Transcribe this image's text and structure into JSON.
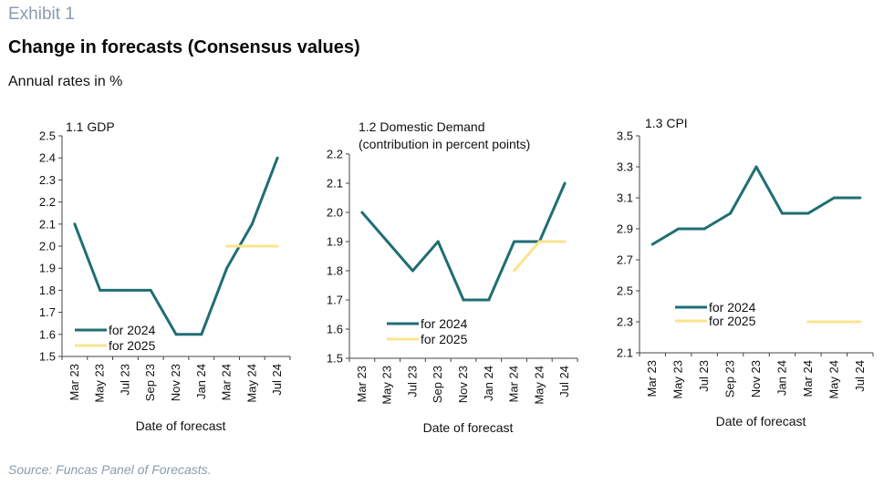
{
  "header": {
    "exhibit": "Exhibit 1",
    "title": "Change in forecasts (Consensus values)",
    "subtitle": "Annual rates in %"
  },
  "footer": {
    "source": "Source: Funcas Panel of Forecasts."
  },
  "colors": {
    "series_2024": "#1f6e73",
    "series_2025": "#fbe38e",
    "axis": "#444444"
  },
  "chart_data": [
    {
      "type": "line",
      "title": "1.1 GDP",
      "subtitle": "",
      "xlabel": "Date of forecast",
      "ylabel": "",
      "categories": [
        "Mar 23",
        "May 23",
        "Jul 23",
        "Sep 23",
        "Nov 23",
        "Jan 24",
        "Mar 24",
        "May 24",
        "Jul 24"
      ],
      "ylim": [
        1.5,
        2.5
      ],
      "yticks": [
        "1.5",
        "1.6",
        "1.7",
        "1.8",
        "1.9",
        "2.0",
        "2.1",
        "2.2",
        "2.3",
        "2.4",
        "2.5"
      ],
      "series": [
        {
          "name": "for 2024",
          "values": [
            2.1,
            1.8,
            1.8,
            1.8,
            1.6,
            1.6,
            1.9,
            2.1,
            2.4
          ]
        },
        {
          "name": "for 2025",
          "values": [
            null,
            null,
            null,
            null,
            null,
            null,
            2.0,
            2.0,
            2.0
          ]
        }
      ],
      "grid": false,
      "legend": "bottom-left"
    },
    {
      "type": "line",
      "title": "1.2 Domestic Demand",
      "subtitle": "(contribution in percent points)",
      "xlabel": "Date of forecast",
      "ylabel": "",
      "categories": [
        "Mar 23",
        "May 23",
        "Jul 23",
        "Sep 23",
        "Nov 23",
        "Jan 24",
        "Mar 24",
        "May 24",
        "Jul 24"
      ],
      "ylim": [
        1.5,
        2.2
      ],
      "yticks": [
        "1.5",
        "1.6",
        "1.7",
        "1.8",
        "1.9",
        "2.0",
        "2.1",
        "2.2"
      ],
      "series": [
        {
          "name": "for 2024",
          "values": [
            2.0,
            1.9,
            1.8,
            1.9,
            1.7,
            1.7,
            1.9,
            1.9,
            2.1
          ]
        },
        {
          "name": "for 2025",
          "values": [
            null,
            null,
            null,
            null,
            null,
            null,
            1.8,
            1.9,
            1.9
          ]
        }
      ],
      "grid": false,
      "legend": "bottom-left"
    },
    {
      "type": "line",
      "title": "1.3 CPI",
      "subtitle": "",
      "xlabel": "Date of forecast",
      "ylabel": "",
      "categories": [
        "Mar 23",
        "May 23",
        "Jul 23",
        "Sep 23",
        "Nov 23",
        "Jan 24",
        "Mar 24",
        "May 24",
        "Jul 24"
      ],
      "ylim": [
        2.1,
        3.5
      ],
      "yticks": [
        "2.1",
        "2.3",
        "2.5",
        "2.7",
        "2.9",
        "3.1",
        "3.3",
        "3.5"
      ],
      "series": [
        {
          "name": "for 2024",
          "values": [
            2.8,
            2.9,
            2.9,
            3.0,
            3.3,
            3.0,
            3.0,
            3.1,
            3.1
          ]
        },
        {
          "name": "for 2025",
          "values": [
            null,
            null,
            null,
            null,
            null,
            null,
            2.3,
            2.3,
            2.3
          ]
        }
      ],
      "grid": false,
      "legend": "bottom-left"
    }
  ]
}
